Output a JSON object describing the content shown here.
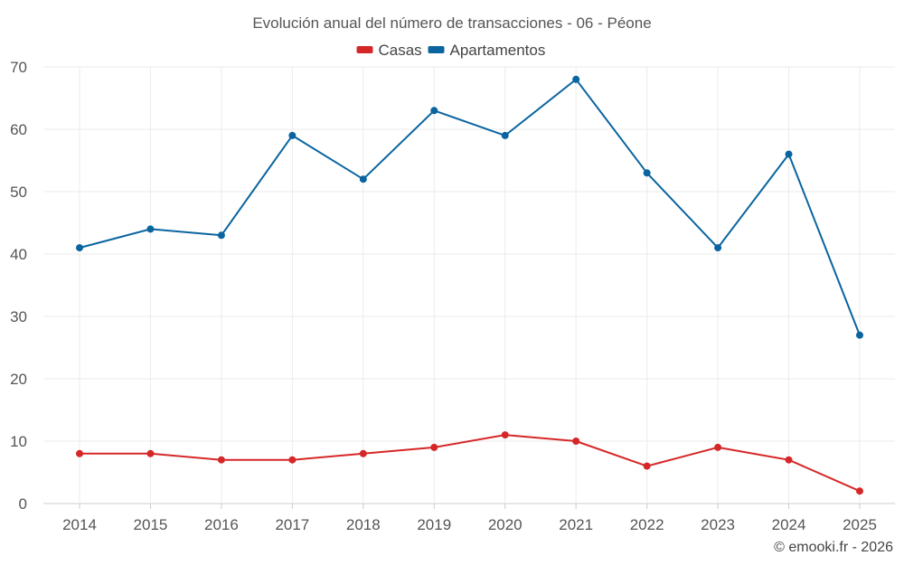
{
  "chart_data": {
    "type": "line",
    "title": "Evolución anual del número de transacciones - 06 - Péone",
    "categories": [
      "2014",
      "2015",
      "2016",
      "2017",
      "2018",
      "2019",
      "2020",
      "2021",
      "2022",
      "2023",
      "2024",
      "2025"
    ],
    "series": [
      {
        "name": "Casas",
        "color": "#d62728",
        "values": [
          8,
          8,
          7,
          7,
          8,
          9,
          11,
          10,
          6,
          9,
          7,
          2
        ]
      },
      {
        "name": "Apartamentos",
        "color": "#0a64a0",
        "values": [
          41,
          44,
          43,
          59,
          52,
          63,
          59,
          68,
          53,
          41,
          56,
          27
        ]
      }
    ],
    "ylim": [
      0,
      70
    ],
    "yticks": [
      0,
      10,
      20,
      30,
      40,
      50,
      60,
      70
    ],
    "xlabel": "",
    "ylabel": "",
    "grid": true,
    "legend_position": "top-center"
  },
  "credit": "© emooki.fr - 2026"
}
